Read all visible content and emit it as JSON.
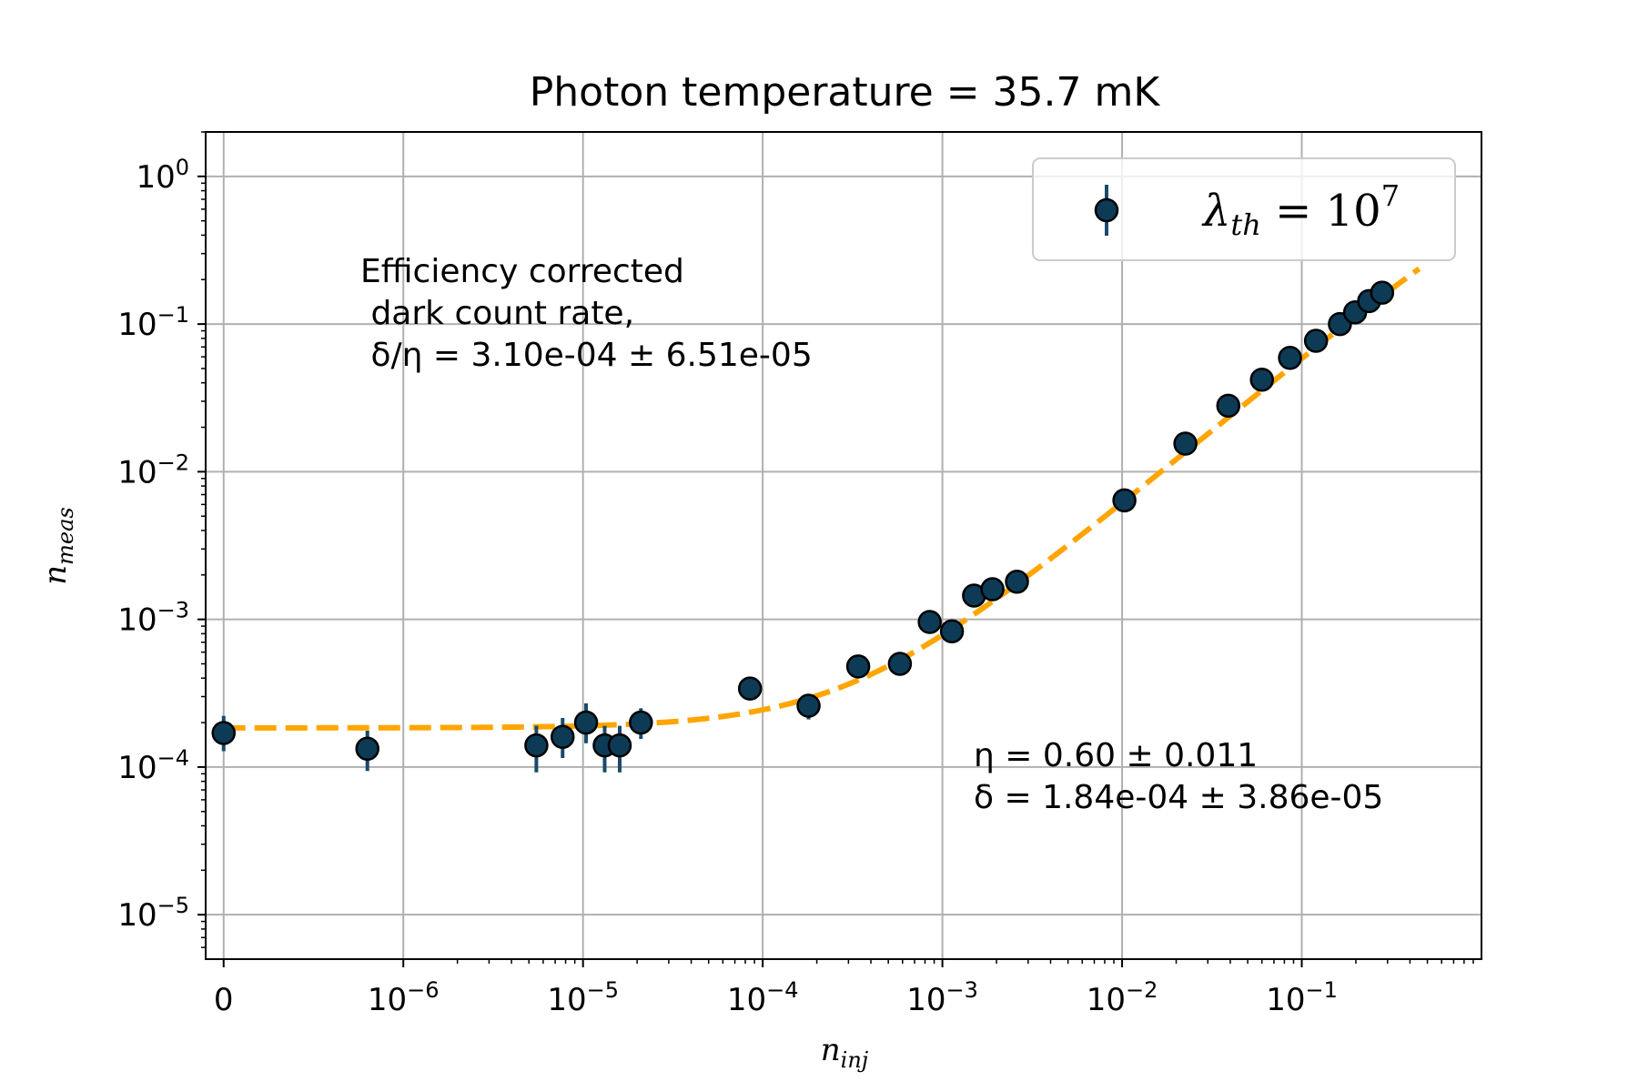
{
  "chart_data": {
    "type": "scatter",
    "title": "Photon temperature = 35.7 mK",
    "xlabel": {
      "base": "n",
      "sub": "inj"
    },
    "ylabel": {
      "base": "n",
      "sub": "meas"
    },
    "x_scale": "symlog",
    "y_scale": "log",
    "xlim": [
      -1e-07,
      1.0
    ],
    "ylim": [
      5e-06,
      2.0
    ],
    "x_ticks": [
      {
        "value": 0,
        "label": "0"
      },
      {
        "value": 1e-06,
        "base": "10",
        "exp": "−6"
      },
      {
        "value": 1e-05,
        "base": "10",
        "exp": "−5"
      },
      {
        "value": 0.0001,
        "base": "10",
        "exp": "−4"
      },
      {
        "value": 0.001,
        "base": "10",
        "exp": "−3"
      },
      {
        "value": 0.01,
        "base": "10",
        "exp": "−2"
      },
      {
        "value": 0.1,
        "base": "10",
        "exp": "−1"
      }
    ],
    "y_ticks": [
      {
        "value": 1e-05,
        "base": "10",
        "exp": "−5"
      },
      {
        "value": 0.0001,
        "base": "10",
        "exp": "−4"
      },
      {
        "value": 0.001,
        "base": "10",
        "exp": "−3"
      },
      {
        "value": 0.01,
        "base": "10",
        "exp": "−2"
      },
      {
        "value": 0.1,
        "base": "10",
        "exp": "−1"
      },
      {
        "value": 1,
        "base": "10",
        "exp": "0"
      }
    ],
    "grid": true,
    "legend": {
      "placement": "top-right",
      "entries": [
        {
          "symbol": "λ",
          "sub": "th",
          "rest": " = 10",
          "exp": "7"
        }
      ]
    },
    "colors": {
      "marker_fill": "#0d3b56",
      "marker_edge": "#000000",
      "errorbar": "#1a4a6b",
      "fit_line": "#ffa500",
      "grid": "#b0b0b0",
      "axes": "#000000"
    },
    "series": [
      {
        "name": "λth = 10^7",
        "points": [
          {
            "x": 0,
            "y": 0.00017,
            "yerr": [
              4.2e-05,
              5.2e-05
            ]
          },
          {
            "x": 8e-07,
            "y": 0.000133,
            "yerr": [
              3.9e-05,
              4.3e-05
            ]
          },
          {
            "x": 5.5e-06,
            "y": 0.00014,
            "yerr": [
              4.8e-05,
              5e-05
            ]
          },
          {
            "x": 7.7e-06,
            "y": 0.00016,
            "yerr": [
              4.5e-05,
              5.5e-05
            ]
          },
          {
            "x": 1.04e-05,
            "y": 0.0002,
            "yerr": [
              5.5e-05,
              7e-05
            ]
          },
          {
            "x": 1.32e-05,
            "y": 0.00014,
            "yerr": [
              4.8e-05,
              5e-05
            ]
          },
          {
            "x": 1.6e-05,
            "y": 0.00014,
            "yerr": [
              4.8e-05,
              5e-05
            ]
          },
          {
            "x": 2.1e-05,
            "y": 0.0002,
            "yerr": [
              4.5e-05,
              5e-05
            ]
          },
          {
            "x": 8.5e-05,
            "y": 0.00034,
            "yerr": [
              4e-05,
              4e-05
            ]
          },
          {
            "x": 0.00018,
            "y": 0.00026,
            "yerr": [
              5e-05,
              5e-05
            ]
          },
          {
            "x": 0.00034,
            "y": 0.00048,
            "yerr": [
              3e-05,
              3e-05
            ]
          },
          {
            "x": 0.00058,
            "y": 0.0005,
            "yerr": [
              3e-05,
              3e-05
            ]
          },
          {
            "x": 0.00085,
            "y": 0.00096,
            "yerr": [
              5e-05,
              5e-05
            ]
          },
          {
            "x": 0.00113,
            "y": 0.00083,
            "yerr": [
              5e-05,
              5e-05
            ]
          },
          {
            "x": 0.0015,
            "y": 0.00145,
            "yerr": [
              5e-05,
              5e-05
            ]
          },
          {
            "x": 0.0019,
            "y": 0.0016,
            "yerr": [
              5e-05,
              5e-05
            ]
          },
          {
            "x": 0.0026,
            "y": 0.0018,
            "yerr": [
              5e-05,
              5e-05
            ]
          },
          {
            "x": 0.0103,
            "y": 0.0064,
            "yerr": [
              0.0001,
              0.0001
            ]
          },
          {
            "x": 0.0225,
            "y": 0.0155,
            "yerr": [
              0.0002,
              0.0002
            ]
          },
          {
            "x": 0.039,
            "y": 0.028,
            "yerr": [
              0.0003,
              0.0003
            ]
          },
          {
            "x": 0.06,
            "y": 0.042,
            "yerr": [
              0.0004,
              0.0004
            ]
          },
          {
            "x": 0.086,
            "y": 0.059,
            "yerr": [
              0.0005,
              0.0005
            ]
          },
          {
            "x": 0.12,
            "y": 0.077,
            "yerr": [
              0.0006,
              0.0006
            ]
          },
          {
            "x": 0.163,
            "y": 0.1,
            "yerr": [
              0.0008,
              0.0008
            ]
          },
          {
            "x": 0.198,
            "y": 0.12,
            "yerr": [
              0.0009,
              0.0009
            ]
          },
          {
            "x": 0.237,
            "y": 0.143,
            "yerr": [
              0.001,
              0.001
            ]
          },
          {
            "x": 0.28,
            "y": 0.163,
            "yerr": [
              0.001,
              0.001
            ]
          }
        ]
      }
    ],
    "fit": {
      "style": "dashed",
      "eta": 0.6,
      "delta": 0.000184,
      "x_max": 0.45
    },
    "annotations": [
      {
        "position": "upper-left",
        "lines": [
          "Efficiency corrected",
          " dark count rate,",
          " δ/η = 3.10e-04 ± 6.51e-05"
        ]
      },
      {
        "position": "lower-right",
        "lines": [
          "η = 0.60 ± 0.011",
          "δ = 1.84e-04 ± 3.86e-05"
        ]
      }
    ]
  }
}
